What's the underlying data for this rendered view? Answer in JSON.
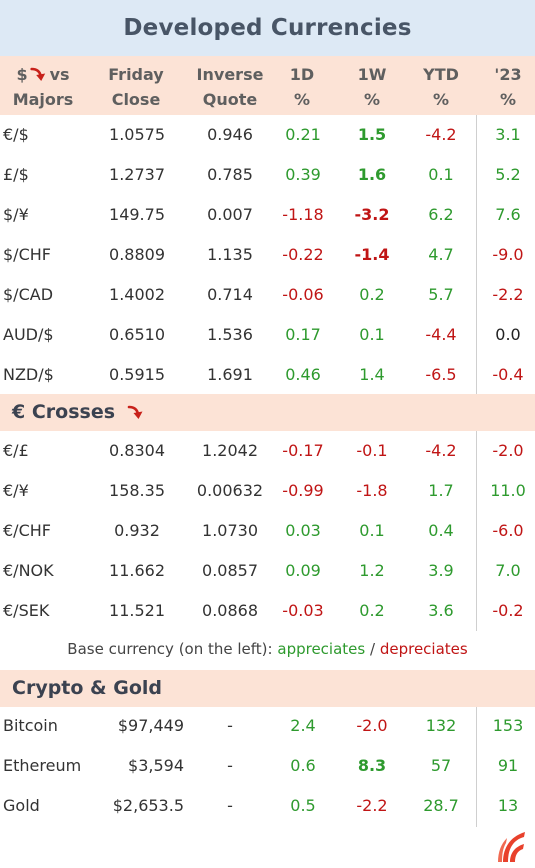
{
  "title": "Developed Currencies",
  "header": {
    "pair": [
      "$",
      "vs",
      "Majors"
    ],
    "close": [
      "Friday",
      "Close"
    ],
    "inverse": [
      "Inverse",
      "Quote"
    ],
    "d1": [
      "1D",
      "%"
    ],
    "w1": [
      "1W",
      "%"
    ],
    "ytd": [
      "YTD",
      "%"
    ],
    "y23": [
      "'23",
      "%"
    ]
  },
  "majors": [
    {
      "pair": "€/$",
      "close": "1.0575",
      "inverse": "0.946",
      "d1": "0.21",
      "w1": "1.5",
      "ytd": "-4.2",
      "y23": "3.1"
    },
    {
      "pair": "£/$",
      "close": "1.2737",
      "inverse": "0.785",
      "d1": "0.39",
      "w1": "1.6",
      "ytd": "0.1",
      "y23": "5.2"
    },
    {
      "pair": "$/¥",
      "close": "149.75",
      "inverse": "0.007",
      "d1": "-1.18",
      "w1": "-3.2",
      "ytd": "6.2",
      "y23": "7.6"
    },
    {
      "pair": "$/CHF",
      "close": "0.8809",
      "inverse": "1.135",
      "d1": "-0.22",
      "w1": "-1.4",
      "ytd": "4.7",
      "y23": "-9.0"
    },
    {
      "pair": "$/CAD",
      "close": "1.4002",
      "inverse": "0.714",
      "d1": "-0.06",
      "w1": "0.2",
      "ytd": "5.7",
      "y23": "-2.2"
    },
    {
      "pair": "AUD/$",
      "close": "0.6510",
      "inverse": "1.536",
      "d1": "0.17",
      "w1": "0.1",
      "ytd": "-4.4",
      "y23": "0.0"
    },
    {
      "pair": "NZD/$",
      "close": "0.5915",
      "inverse": "1.691",
      "d1": "0.46",
      "w1": "1.4",
      "ytd": "-6.5",
      "y23": "-0.4"
    }
  ],
  "crosses_title": "€ Crosses",
  "crosses": [
    {
      "pair": "€/£",
      "close": "0.8304",
      "inverse": "1.2042",
      "d1": "-0.17",
      "w1": "-0.1",
      "ytd": "-4.2",
      "y23": "-2.0"
    },
    {
      "pair": "€/¥",
      "close": "158.35",
      "inverse": "0.00632",
      "d1": "-0.99",
      "w1": "-1.8",
      "ytd": "1.7",
      "y23": "11.0"
    },
    {
      "pair": "€/CHF",
      "close": "0.932",
      "inverse": "1.0730",
      "d1": "0.03",
      "w1": "0.1",
      "ytd": "0.4",
      "y23": "-6.0"
    },
    {
      "pair": "€/NOK",
      "close": "11.662",
      "inverse": "0.0857",
      "d1": "0.09",
      "w1": "1.2",
      "ytd": "3.9",
      "y23": "7.0"
    },
    {
      "pair": "€/SEK",
      "close": "11.521",
      "inverse": "0.0868",
      "d1": "-0.03",
      "w1": "0.2",
      "ytd": "3.6",
      "y23": "-0.2"
    }
  ],
  "legend": {
    "prefix": "Base currency (on the left):",
    "up": "appreciates",
    "sep": "/",
    "down": "depreciates"
  },
  "crypto_title": "Crypto & Gold",
  "crypto": [
    {
      "pair": "Bitcoin",
      "close": "$97,449",
      "inverse": "-",
      "d1": "2.4",
      "w1": "-2.0",
      "ytd": "132",
      "y23": "153"
    },
    {
      "pair": "Ethereum",
      "close": "$3,594",
      "inverse": "-",
      "d1": "0.6",
      "w1": "8.3",
      "ytd": "57",
      "y23": "91"
    },
    {
      "pair": "Gold",
      "close": "$2,653.5",
      "inverse": "-",
      "d1": "0.5",
      "w1": "-2.2",
      "ytd": "28.7",
      "y23": "13"
    }
  ],
  "colors": {
    "positive": "#2e9a2e",
    "negative": "#c01515",
    "header_bg": "#fce3d6",
    "title_bg": "#dde9f5",
    "arrow": "#c8211a",
    "logo": "#e8412c"
  },
  "icons": {
    "pair_header": "red-curved-down-arrow-icon",
    "crosses_header": "red-curved-down-arrow-icon",
    "brand": "brand-logo-icon"
  },
  "bold_cells": [
    "majors.0.w1",
    "majors.1.w1",
    "majors.2.w1",
    "majors.3.w1",
    "crypto.1.w1"
  ]
}
